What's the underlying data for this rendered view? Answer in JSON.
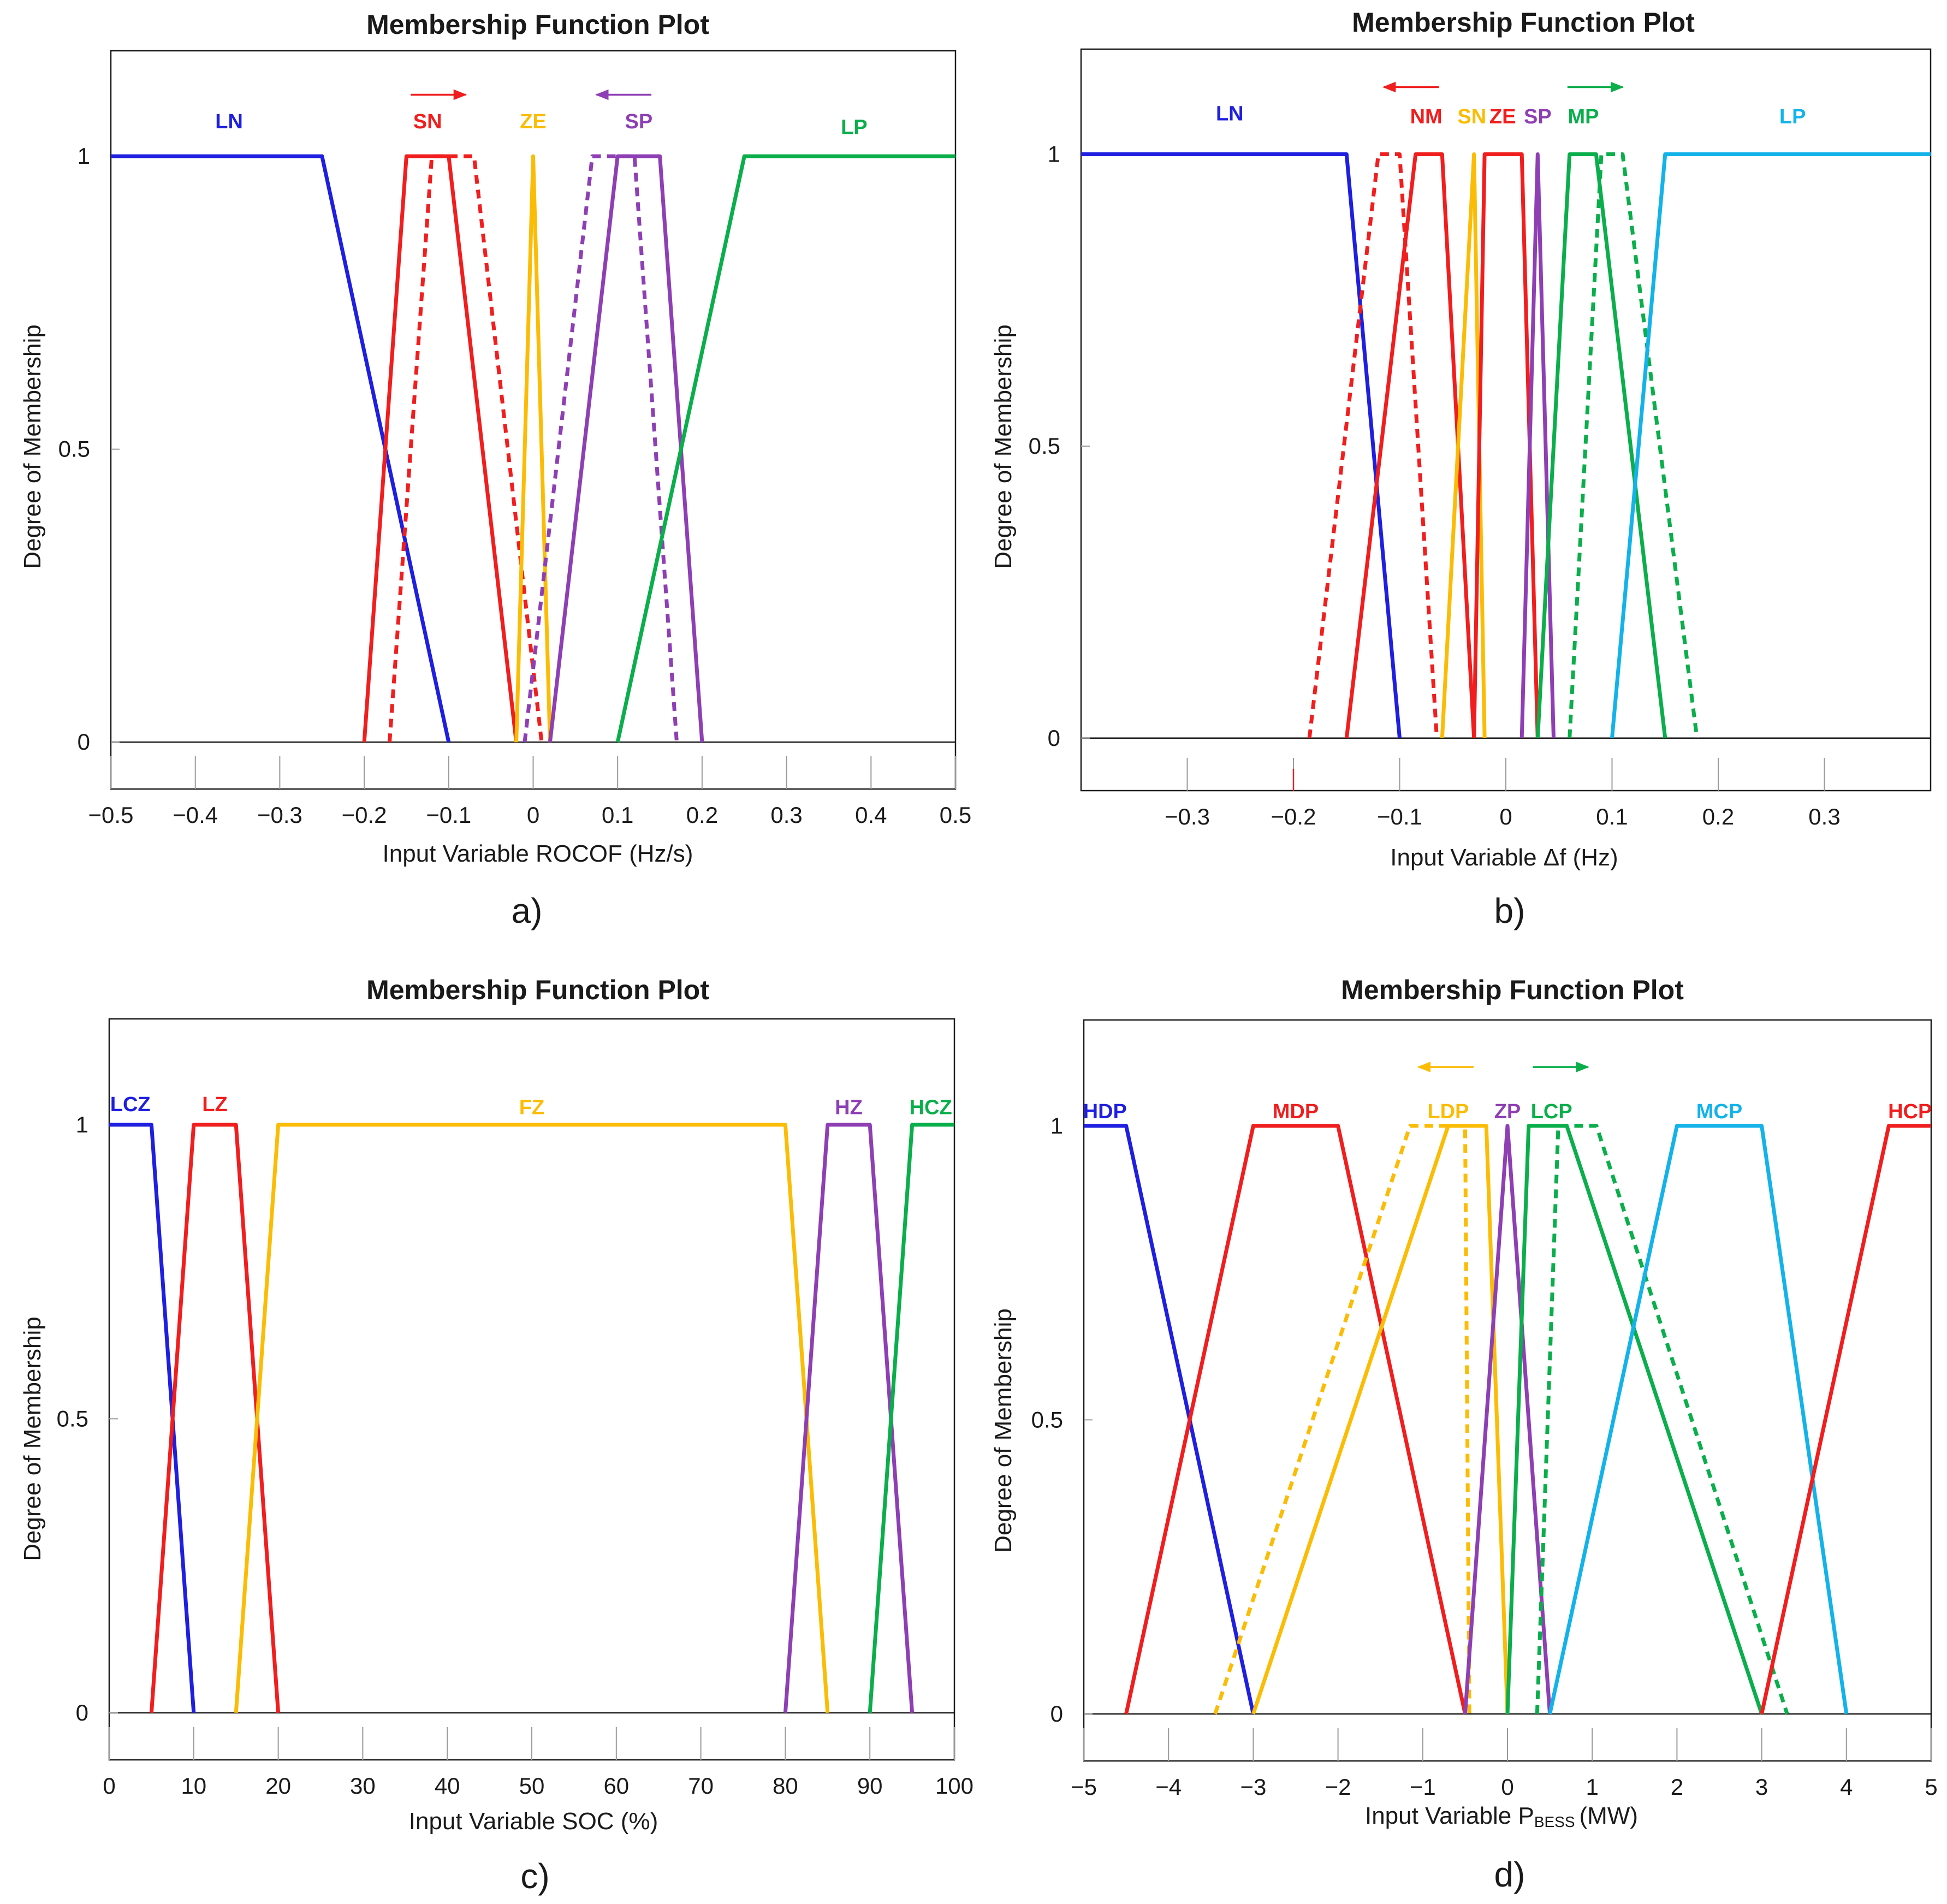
{
  "colors": {
    "blue": "#1f1fe0",
    "red": "#f01e1e",
    "yellow": "#fbbc05",
    "purple": "#8e3fb4",
    "green": "#0aae4b",
    "cyan": "#13b3ea",
    "axis": "#1a1a1a",
    "grid": "#9a9a9a"
  },
  "chart_data": [
    {
      "type": "line",
      "panel_label": "a)",
      "title": "Membership Function Plot",
      "xlabel": "Input Variable ROCOF (Hz/s)",
      "ylabel": "Degree of Membership",
      "xlim": [
        -0.5,
        0.5
      ],
      "ylim": [
        -0.08,
        1.18
      ],
      "xticks": [
        -0.5,
        -0.4,
        -0.3,
        -0.2,
        -0.1,
        0,
        0.1,
        0.2,
        0.3,
        0.4,
        0.5
      ],
      "xtick_labels": [
        "−0.5",
        "−0.4",
        "−0.3",
        "−0.2",
        "−0.1",
        "0",
        "0.1",
        "0.2",
        "0.3",
        "0.4",
        "0.5"
      ],
      "yticks": [
        0,
        0.5,
        1
      ],
      "ytick_labels": [
        "0",
        "0.5",
        "1"
      ],
      "series": [
        {
          "name": "LN",
          "color": "blue",
          "dashed": false,
          "x": [
            -0.5,
            -0.25,
            -0.1
          ],
          "y": [
            1,
            1,
            0
          ]
        },
        {
          "name": "SN",
          "color": "red",
          "dashed": false,
          "x": [
            -0.2,
            -0.15,
            -0.1,
            -0.02
          ],
          "y": [
            0,
            1,
            1,
            0
          ]
        },
        {
          "name": "SN shifted",
          "color": "red",
          "dashed": true,
          "x": [
            -0.17,
            -0.12,
            -0.07,
            0.01
          ],
          "y": [
            0,
            1,
            1,
            0
          ]
        },
        {
          "name": "ZE",
          "color": "yellow",
          "dashed": false,
          "x": [
            -0.02,
            0,
            0.02
          ],
          "y": [
            0,
            1,
            0
          ]
        },
        {
          "name": "SP shifted",
          "color": "purple",
          "dashed": true,
          "x": [
            -0.01,
            0.07,
            0.12,
            0.17
          ],
          "y": [
            0,
            1,
            1,
            0
          ]
        },
        {
          "name": "SP",
          "color": "purple",
          "dashed": false,
          "x": [
            0.02,
            0.1,
            0.15,
            0.2
          ],
          "y": [
            0,
            1,
            1,
            0
          ]
        },
        {
          "name": "LP",
          "color": "green",
          "dashed": false,
          "x": [
            0.1,
            0.25,
            0.5
          ],
          "y": [
            0,
            1,
            1
          ]
        }
      ],
      "labels": [
        {
          "text": "LN",
          "color": "blue",
          "x": -0.36,
          "y": 1.06
        },
        {
          "text": "SN",
          "color": "red",
          "x": -0.125,
          "y": 1.06
        },
        {
          "text": "ZE",
          "color": "yellow",
          "x": 0,
          "y": 1.06
        },
        {
          "text": "SP",
          "color": "purple",
          "x": 0.125,
          "y": 1.06
        },
        {
          "text": "LP",
          "color": "green",
          "x": 0.38,
          "y": 1.05
        }
      ],
      "arrows": [
        {
          "color": "red",
          "from": -0.145,
          "to": -0.08,
          "y": 1.105
        },
        {
          "color": "purple",
          "from": 0.14,
          "to": 0.075,
          "y": 1.105
        }
      ]
    },
    {
      "type": "line",
      "panel_label": "b)",
      "title": "Membership Function Plot",
      "xlabel": "Input Variable Δf (Hz)",
      "ylabel": "Degree of Membership",
      "xlim": [
        -0.4,
        0.4
      ],
      "ylim": [
        -0.09,
        1.18
      ],
      "xticks": [
        -0.3,
        -0.2,
        -0.1,
        0,
        0.1,
        0.2,
        0.3
      ],
      "xtick_labels": [
        "−0.3",
        "−0.2",
        "−0.1",
        "0",
        "0.1",
        "0.2",
        "0.3"
      ],
      "yticks": [
        0,
        0.5,
        1
      ],
      "ytick_labels": [
        "0",
        "0.5",
        "1"
      ],
      "series": [
        {
          "name": "LN",
          "color": "blue",
          "dashed": false,
          "x": [
            -0.4,
            -0.15,
            -0.1
          ],
          "y": [
            1,
            1,
            0
          ]
        },
        {
          "name": "NM shifted",
          "color": "red",
          "dashed": true,
          "x": [
            -0.185,
            -0.12,
            -0.1,
            -0.065
          ],
          "y": [
            0,
            1,
            1,
            0
          ]
        },
        {
          "name": "NM",
          "color": "red",
          "dashed": false,
          "x": [
            -0.15,
            -0.085,
            -0.06,
            -0.03
          ],
          "y": [
            0,
            1,
            1,
            0
          ]
        },
        {
          "name": "SN",
          "color": "yellow",
          "dashed": false,
          "x": [
            -0.06,
            -0.03,
            -0.02
          ],
          "y": [
            0,
            1,
            0
          ]
        },
        {
          "name": "ZE",
          "color": "red",
          "dashed": false,
          "x": [
            -0.03,
            -0.02,
            0.015,
            0.03
          ],
          "y": [
            0,
            1,
            1,
            0
          ]
        },
        {
          "name": "SP",
          "color": "purple",
          "dashed": false,
          "x": [
            0.015,
            0.03,
            0.045
          ],
          "y": [
            0,
            1,
            0
          ]
        },
        {
          "name": "MP",
          "color": "green",
          "dashed": false,
          "x": [
            0.03,
            0.06,
            0.085,
            0.15
          ],
          "y": [
            0,
            1,
            1,
            0
          ]
        },
        {
          "name": "MP shifted",
          "color": "green",
          "dashed": true,
          "x": [
            0.06,
            0.09,
            0.11,
            0.18
          ],
          "y": [
            0,
            1,
            1,
            0
          ]
        },
        {
          "name": "LP",
          "color": "cyan",
          "dashed": false,
          "x": [
            0.1,
            0.15,
            0.4
          ],
          "y": [
            0,
            1,
            1
          ]
        }
      ],
      "labels": [
        {
          "text": "LN",
          "color": "blue",
          "x": -0.26,
          "y": 1.07
        },
        {
          "text": "NM",
          "color": "red",
          "x": -0.075,
          "y": 1.065
        },
        {
          "text": "SN",
          "color": "yellow",
          "x": -0.032,
          "y": 1.065
        },
        {
          "text": "ZE",
          "color": "red",
          "x": -0.003,
          "y": 1.065
        },
        {
          "text": "SP",
          "color": "purple",
          "x": 0.03,
          "y": 1.065
        },
        {
          "text": "MP",
          "color": "green",
          "x": 0.073,
          "y": 1.065
        },
        {
          "text": "LP",
          "color": "cyan",
          "x": 0.27,
          "y": 1.065
        }
      ],
      "arrows": [
        {
          "color": "red",
          "from": -0.063,
          "to": -0.115,
          "y": 1.115
        },
        {
          "color": "green",
          "from": 0.058,
          "to": 0.11,
          "y": 1.115
        }
      ]
    },
    {
      "type": "line",
      "panel_label": "c)",
      "title": "Membership Function Plot",
      "xlabel": "Input Variable SOC (%)",
      "ylabel": "Degree of Membership",
      "xlim": [
        0,
        100
      ],
      "ylim": [
        -0.08,
        1.18
      ],
      "xticks": [
        0,
        10,
        20,
        30,
        40,
        50,
        60,
        70,
        80,
        90,
        100
      ],
      "xtick_labels": [
        "0",
        "10",
        "20",
        "30",
        "40",
        "50",
        "60",
        "70",
        "80",
        "90",
        "100"
      ],
      "yticks": [
        0,
        0.5,
        1
      ],
      "ytick_labels": [
        "0",
        "0.5",
        "1"
      ],
      "series": [
        {
          "name": "LCZ",
          "color": "blue",
          "dashed": false,
          "x": [
            0,
            5,
            10
          ],
          "y": [
            1,
            1,
            0
          ]
        },
        {
          "name": "LZ",
          "color": "red",
          "dashed": false,
          "x": [
            5,
            10,
            15,
            20
          ],
          "y": [
            0,
            1,
            1,
            0
          ]
        },
        {
          "name": "FZ",
          "color": "yellow",
          "dashed": false,
          "x": [
            15,
            20,
            80,
            85
          ],
          "y": [
            0,
            1,
            1,
            0
          ]
        },
        {
          "name": "HZ",
          "color": "purple",
          "dashed": false,
          "x": [
            80,
            85,
            90,
            95
          ],
          "y": [
            0,
            1,
            1,
            0
          ]
        },
        {
          "name": "HCZ",
          "color": "green",
          "dashed": false,
          "x": [
            90,
            95,
            100
          ],
          "y": [
            0,
            1,
            1
          ]
        }
      ],
      "labels": [
        {
          "text": "LCZ",
          "color": "blue",
          "x": 2.5,
          "y": 1.035
        },
        {
          "text": "LZ",
          "color": "red",
          "x": 12.5,
          "y": 1.035
        },
        {
          "text": "FZ",
          "color": "yellow",
          "x": 50,
          "y": 1.03
        },
        {
          "text": "HZ",
          "color": "purple",
          "x": 87.5,
          "y": 1.03
        },
        {
          "text": "HCZ",
          "color": "green",
          "x": 97.2,
          "y": 1.03
        }
      ],
      "arrows": []
    },
    {
      "type": "line",
      "panel_label": "d)",
      "title": "Membership Function Plot",
      "xlabel_main": "Input Variable P",
      "xlabel_sub": "BESS",
      "xlabel_unit": "(MW)",
      "ylabel": "Degree of Membership",
      "xlim": [
        -5,
        5
      ],
      "ylim": [
        -0.08,
        1.18
      ],
      "xticks": [
        -5,
        -4,
        -3,
        -2,
        -1,
        0,
        1,
        2,
        3,
        4,
        5
      ],
      "xtick_labels": [
        "−5",
        "−4",
        "−3",
        "−2",
        "−1",
        "0",
        "1",
        "2",
        "3",
        "4",
        "5"
      ],
      "yticks": [
        0,
        0.5,
        1
      ],
      "ytick_labels": [
        "0",
        "0.5",
        "1"
      ],
      "series": [
        {
          "name": "HDP",
          "color": "blue",
          "dashed": false,
          "x": [
            -5,
            -4.5,
            -3
          ],
          "y": [
            1,
            1,
            0
          ]
        },
        {
          "name": "MDP",
          "color": "red",
          "dashed": false,
          "x": [
            -4.5,
            -3,
            -2,
            -0.5
          ],
          "y": [
            0,
            1,
            1,
            0
          ]
        },
        {
          "name": "LDP shifted",
          "color": "yellow",
          "dashed": true,
          "x": [
            -3.45,
            -1.15,
            -0.5,
            -0.45
          ],
          "y": [
            0,
            1,
            1,
            0
          ]
        },
        {
          "name": "LDP",
          "color": "yellow",
          "dashed": false,
          "x": [
            -3,
            -0.7,
            -0.25,
            0
          ],
          "y": [
            0,
            1,
            1,
            0
          ]
        },
        {
          "name": "ZP",
          "color": "purple",
          "dashed": false,
          "x": [
            -0.5,
            0,
            0.5
          ],
          "y": [
            0,
            1,
            0
          ]
        },
        {
          "name": "LCP",
          "color": "green",
          "dashed": false,
          "x": [
            0,
            0.25,
            0.7,
            3
          ],
          "y": [
            0,
            1,
            1,
            0
          ]
        },
        {
          "name": "LCP shifted",
          "color": "green",
          "dashed": true,
          "x": [
            0.35,
            0.6,
            1.05,
            3.3
          ],
          "y": [
            0,
            1,
            1,
            0
          ]
        },
        {
          "name": "MCP",
          "color": "cyan",
          "dashed": false,
          "x": [
            0.5,
            2,
            3,
            4
          ],
          "y": [
            0,
            1,
            1,
            0
          ]
        },
        {
          "name": "HCP",
          "color": "red",
          "dashed": false,
          "x": [
            3,
            4.5,
            5
          ],
          "y": [
            0,
            1,
            1
          ]
        }
      ],
      "labels": [
        {
          "text": "HDP",
          "color": "blue",
          "x": -4.75,
          "y": 1.025
        },
        {
          "text": "MDP",
          "color": "red",
          "x": -2.5,
          "y": 1.025
        },
        {
          "text": "LDP",
          "color": "yellow",
          "x": -0.7,
          "y": 1.025
        },
        {
          "text": "ZP",
          "color": "purple",
          "x": 0,
          "y": 1.025
        },
        {
          "text": "LCP",
          "color": "green",
          "x": 0.52,
          "y": 1.025
        },
        {
          "text": "MCP",
          "color": "cyan",
          "x": 2.5,
          "y": 1.025
        },
        {
          "text": "HCP",
          "color": "red",
          "x": 4.75,
          "y": 1.025
        }
      ],
      "arrows": [
        {
          "color": "yellow",
          "from": -0.4,
          "to": -1.05,
          "y": 1.1
        },
        {
          "color": "green",
          "from": 0.3,
          "to": 0.95,
          "y": 1.1
        }
      ]
    }
  ]
}
